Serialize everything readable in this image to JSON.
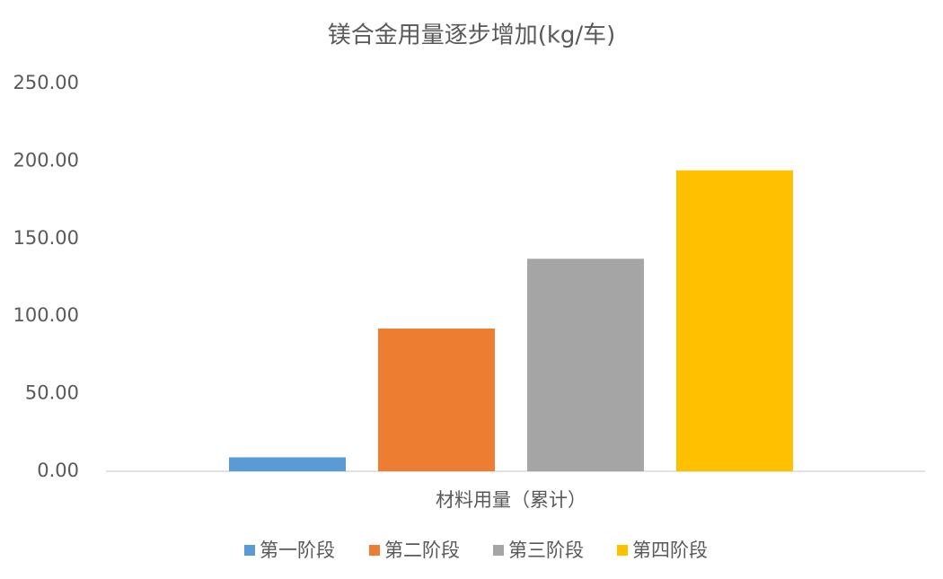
{
  "chart_data": {
    "type": "bar",
    "title": "镁合金用量逐步增加(kg/车)",
    "categories": [
      "材料用量（累计）"
    ],
    "series": [
      {
        "name": "第一阶段",
        "color": "#5b9bd5",
        "values": [
          9
        ]
      },
      {
        "name": "第二阶段",
        "color": "#ed7d31",
        "values": [
          92
        ]
      },
      {
        "name": "第三阶段",
        "color": "#a5a5a5",
        "values": [
          137
        ]
      },
      {
        "name": "第四阶段",
        "color": "#ffc000",
        "values": [
          194
        ]
      }
    ],
    "ylim": [
      0,
      250
    ],
    "yticks": [
      {
        "value": 0,
        "label": "0.00"
      },
      {
        "value": 50,
        "label": "50.00"
      },
      {
        "value": 100,
        "label": "100.00"
      },
      {
        "value": 150,
        "label": "150.00"
      },
      {
        "value": 200,
        "label": "200.00"
      },
      {
        "value": 250,
        "label": "250.00"
      }
    ],
    "grid": false,
    "legend": "bottom"
  }
}
